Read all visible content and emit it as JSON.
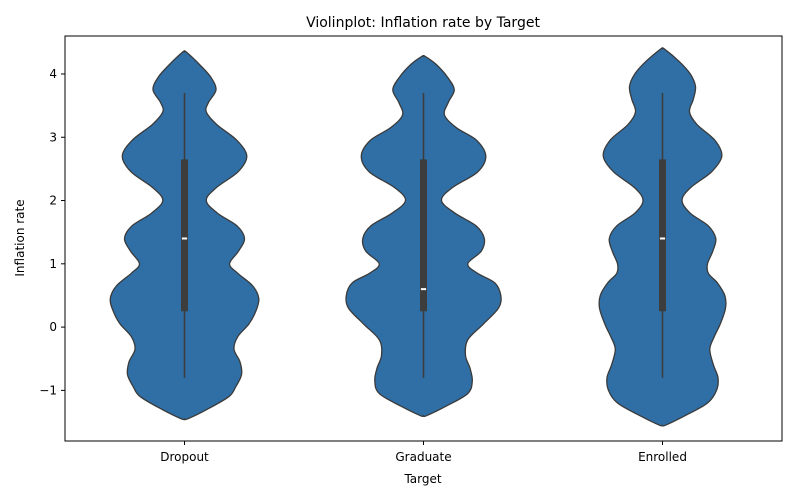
{
  "chart_data": {
    "type": "violin",
    "title": "Violinplot: Inflation rate by Target",
    "xlabel": "Target",
    "ylabel": "Inflation rate",
    "categories": [
      "Dropout",
      "Graduate",
      "Enrolled"
    ],
    "ylim": [
      -1.8,
      4.6
    ],
    "yticks": [
      -1,
      0,
      1,
      2,
      3,
      4
    ],
    "ytick_labels": [
      "−1",
      "0",
      "1",
      "2",
      "3",
      "4"
    ],
    "grid": false,
    "colors": {
      "violin": "#2f6fa6",
      "edge": "#3a3a3a",
      "box": "#3d3d3d",
      "median": "#ffffff"
    },
    "violins": [
      {
        "name": "Dropout",
        "y_min": -0.8,
        "q1": 0.25,
        "median": 1.4,
        "q3": 2.65,
        "y_max": 3.7,
        "profile": [
          [
            -1.45,
            0.04
          ],
          [
            -1.3,
            0.3
          ],
          [
            -1.1,
            0.59
          ],
          [
            -0.95,
            0.68
          ],
          [
            -0.75,
            0.76
          ],
          [
            -0.55,
            0.74
          ],
          [
            -0.35,
            0.66
          ],
          [
            -0.15,
            0.71
          ],
          [
            0.05,
            0.86
          ],
          [
            0.25,
            0.95
          ],
          [
            0.45,
            0.99
          ],
          [
            0.65,
            0.91
          ],
          [
            0.85,
            0.71
          ],
          [
            1.0,
            0.6
          ],
          [
            1.2,
            0.72
          ],
          [
            1.4,
            0.8
          ],
          [
            1.6,
            0.7
          ],
          [
            1.8,
            0.44
          ],
          [
            2.0,
            0.29
          ],
          [
            2.2,
            0.42
          ],
          [
            2.45,
            0.71
          ],
          [
            2.7,
            0.83
          ],
          [
            2.95,
            0.7
          ],
          [
            3.2,
            0.43
          ],
          [
            3.4,
            0.29
          ],
          [
            3.55,
            0.32
          ],
          [
            3.75,
            0.42
          ],
          [
            3.95,
            0.35
          ],
          [
            4.15,
            0.2
          ],
          [
            4.35,
            0.02
          ]
        ]
      },
      {
        "name": "Graduate",
        "y_min": -0.8,
        "q1": 0.25,
        "median": 0.6,
        "q3": 2.65,
        "y_max": 3.7,
        "profile": [
          [
            -1.4,
            0.04
          ],
          [
            -1.25,
            0.3
          ],
          [
            -1.05,
            0.59
          ],
          [
            -0.85,
            0.65
          ],
          [
            -0.65,
            0.62
          ],
          [
            -0.45,
            0.56
          ],
          [
            -0.2,
            0.59
          ],
          [
            0.05,
            0.8
          ],
          [
            0.3,
            1.0
          ],
          [
            0.5,
            1.03
          ],
          [
            0.7,
            0.95
          ],
          [
            0.85,
            0.72
          ],
          [
            1.0,
            0.59
          ],
          [
            1.2,
            0.77
          ],
          [
            1.4,
            0.81
          ],
          [
            1.6,
            0.7
          ],
          [
            1.8,
            0.42
          ],
          [
            2.0,
            0.24
          ],
          [
            2.2,
            0.38
          ],
          [
            2.45,
            0.72
          ],
          [
            2.7,
            0.83
          ],
          [
            2.95,
            0.71
          ],
          [
            3.15,
            0.44
          ],
          [
            3.35,
            0.28
          ],
          [
            3.55,
            0.33
          ],
          [
            3.75,
            0.41
          ],
          [
            3.95,
            0.32
          ],
          [
            4.15,
            0.17
          ],
          [
            4.28,
            0.02
          ]
        ]
      },
      {
        "name": "Enrolled",
        "y_min": -0.8,
        "q1": 0.25,
        "median": 1.4,
        "q3": 2.65,
        "y_max": 3.7,
        "profile": [
          [
            -1.55,
            0.04
          ],
          [
            -1.4,
            0.3
          ],
          [
            -1.2,
            0.6
          ],
          [
            -1.0,
            0.72
          ],
          [
            -0.8,
            0.74
          ],
          [
            -0.6,
            0.68
          ],
          [
            -0.35,
            0.63
          ],
          [
            -0.15,
            0.69
          ],
          [
            0.05,
            0.77
          ],
          [
            0.3,
            0.84
          ],
          [
            0.5,
            0.83
          ],
          [
            0.7,
            0.73
          ],
          [
            0.85,
            0.61
          ],
          [
            1.0,
            0.6
          ],
          [
            1.2,
            0.67
          ],
          [
            1.4,
            0.71
          ],
          [
            1.6,
            0.61
          ],
          [
            1.8,
            0.37
          ],
          [
            2.0,
            0.26
          ],
          [
            2.2,
            0.37
          ],
          [
            2.45,
            0.65
          ],
          [
            2.7,
            0.79
          ],
          [
            2.95,
            0.7
          ],
          [
            3.2,
            0.46
          ],
          [
            3.4,
            0.36
          ],
          [
            3.6,
            0.41
          ],
          [
            3.8,
            0.44
          ],
          [
            4.0,
            0.37
          ],
          [
            4.2,
            0.22
          ],
          [
            4.4,
            0.02
          ]
        ]
      }
    ]
  }
}
